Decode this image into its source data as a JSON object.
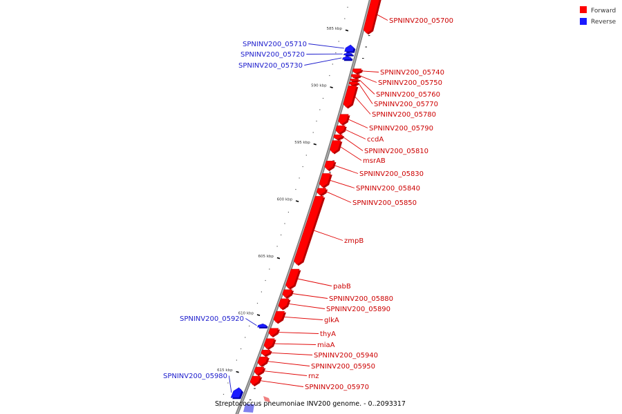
{
  "colors": {
    "forward": "#ff0000",
    "forward_dark": "#b80000",
    "reverse": "#1a1aff",
    "reverse_dark": "#0000aa",
    "leader_forward": "#e00000",
    "leader_reverse": "#1a1acc",
    "backbone": "#808080"
  },
  "legend": [
    {
      "label": "Forward",
      "strand": "forward"
    },
    {
      "label": "Reverse",
      "strand": "reverse"
    }
  ],
  "caption": "Streptococcus pneumoniae INV200 genome. - 0..2093317",
  "ticks": [
    {
      "label": "585 kbp",
      "kbp": 585
    },
    {
      "label": "590 kbp",
      "kbp": 590
    },
    {
      "label": "595 kbp",
      "kbp": 595
    },
    {
      "label": "600 kbp",
      "kbp": 600
    },
    {
      "label": "605 kbp",
      "kbp": 605
    },
    {
      "label": "610 kbp",
      "kbp": 610
    },
    {
      "label": "615 kbp",
      "kbp": 615
    }
  ],
  "genes": [
    {
      "name": "SPNINV200_05700",
      "strand": "forward",
      "start_kbp": 582.0,
      "end_kbp": 585.3
    },
    {
      "name": "SPNINV200_05710",
      "strand": "reverse",
      "start_kbp": 586.3,
      "end_kbp": 586.9
    },
    {
      "name": "SPNINV200_05720",
      "strand": "reverse",
      "start_kbp": 587.0,
      "end_kbp": 587.2
    },
    {
      "name": "SPNINV200_05730",
      "strand": "reverse",
      "start_kbp": 587.3,
      "end_kbp": 587.6
    },
    {
      "name": "SPNINV200_05740",
      "strand": "forward",
      "start_kbp": 588.4,
      "end_kbp": 588.8
    },
    {
      "name": "SPNINV200_05750",
      "strand": "forward",
      "start_kbp": 588.9,
      "end_kbp": 589.2
    },
    {
      "name": "SPNINV200_05760",
      "strand": "forward",
      "start_kbp": 589.3,
      "end_kbp": 589.5
    },
    {
      "name": "SPNINV200_05770",
      "strand": "forward",
      "start_kbp": 589.55,
      "end_kbp": 589.85
    },
    {
      "name": "SPNINV200_05780",
      "strand": "forward",
      "start_kbp": 589.9,
      "end_kbp": 591.8
    },
    {
      "name": "SPNINV200_05790",
      "strand": "forward",
      "start_kbp": 592.4,
      "end_kbp": 593.3
    },
    {
      "name": "ccdA",
      "strand": "forward",
      "start_kbp": 593.4,
      "end_kbp": 594.1
    },
    {
      "name": "SPNINV200_05810",
      "strand": "forward",
      "start_kbp": 594.2,
      "end_kbp": 594.6
    },
    {
      "name": "msrAB",
      "strand": "forward",
      "start_kbp": 594.7,
      "end_kbp": 595.8
    },
    {
      "name": "SPNINV200_05830",
      "strand": "forward",
      "start_kbp": 596.5,
      "end_kbp": 597.3
    },
    {
      "name": "SPNINV200_05840",
      "strand": "forward",
      "start_kbp": 597.6,
      "end_kbp": 598.8
    },
    {
      "name": "SPNINV200_05850",
      "strand": "forward",
      "start_kbp": 598.9,
      "end_kbp": 599.5
    },
    {
      "name": "zmpB",
      "strand": "forward",
      "start_kbp": 599.6,
      "end_kbp": 605.6
    },
    {
      "name": "pabB",
      "strand": "forward",
      "start_kbp": 606.0,
      "end_kbp": 607.7
    },
    {
      "name": "SPNINV200_05880",
      "strand": "forward",
      "start_kbp": 607.8,
      "end_kbp": 608.5
    },
    {
      "name": "SPNINV200_05890",
      "strand": "forward",
      "start_kbp": 608.6,
      "end_kbp": 609.5
    },
    {
      "name": "glkA",
      "strand": "forward",
      "start_kbp": 609.7,
      "end_kbp": 610.7
    },
    {
      "name": "SPNINV200_05920",
      "strand": "reverse",
      "start_kbp": 610.8,
      "end_kbp": 611.1
    },
    {
      "name": "thyA",
      "strand": "forward",
      "start_kbp": 611.2,
      "end_kbp": 611.9
    },
    {
      "name": "miaA",
      "strand": "forward",
      "start_kbp": 612.1,
      "end_kbp": 613.0
    },
    {
      "name": "SPNINV200_05940",
      "strand": "forward",
      "start_kbp": 613.1,
      "end_kbp": 613.6
    },
    {
      "name": "SPNINV200_05950",
      "strand": "forward",
      "start_kbp": 613.7,
      "end_kbp": 614.5
    },
    {
      "name": "rnz",
      "strand": "forward",
      "start_kbp": 614.6,
      "end_kbp": 615.3
    },
    {
      "name": "SPNINV200_05970",
      "strand": "forward",
      "start_kbp": 615.4,
      "end_kbp": 616.2
    },
    {
      "name": "SPNINV200_05980",
      "strand": "reverse",
      "start_kbp": 616.4,
      "end_kbp": 617.3
    }
  ]
}
